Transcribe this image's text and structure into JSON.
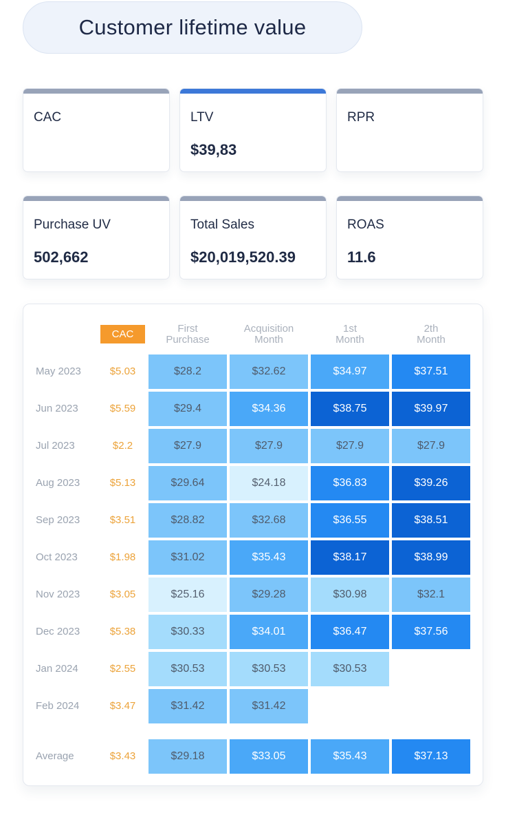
{
  "title": "Customer lifetime value",
  "kpis": [
    {
      "label": "CAC",
      "value": "",
      "active": false
    },
    {
      "label": "LTV",
      "value": "$39,83",
      "active": true
    },
    {
      "label": "RPR",
      "value": "",
      "active": false
    },
    {
      "label": "Purchase UV",
      "value": "502,662",
      "active": false
    },
    {
      "label": "Total Sales",
      "value": "$20,019,520.39",
      "active": false
    },
    {
      "label": "ROAS",
      "value": "11.6",
      "active": false
    }
  ],
  "table": {
    "cac_header": "CAC",
    "columns": [
      "First Purchase",
      "Acquisition Month",
      "1st Month",
      "2th Month"
    ],
    "rows": [
      {
        "label": "May 2023",
        "cac": "$5.03",
        "cells": [
          "$28.2",
          "$32.62",
          "$34.97",
          "$37.51"
        ]
      },
      {
        "label": "Jun 2023",
        "cac": "$5.59",
        "cells": [
          "$29.4",
          "$34.36",
          "$38.75",
          "$39.97"
        ]
      },
      {
        "label": "Jul 2023",
        "cac": "$2.2",
        "cells": [
          "$27.9",
          "$27.9",
          "$27.9",
          "$27.9"
        ]
      },
      {
        "label": "Aug 2023",
        "cac": "$5.13",
        "cells": [
          "$29.64",
          "$24.18",
          "$36.83",
          "$39.26"
        ]
      },
      {
        "label": "Sep 2023",
        "cac": "$3.51",
        "cells": [
          "$28.82",
          "$32.68",
          "$36.55",
          "$38.51"
        ]
      },
      {
        "label": "Oct 2023",
        "cac": "$1.98",
        "cells": [
          "$31.02",
          "$35.43",
          "$38.17",
          "$38.99"
        ]
      },
      {
        "label": "Nov 2023",
        "cac": "$3.05",
        "cells": [
          "$25.16",
          "$29.28",
          "$30.98",
          "$32.1"
        ]
      },
      {
        "label": "Dec 2023",
        "cac": "$5.38",
        "cells": [
          "$30.33",
          "$34.01",
          "$36.47",
          "$37.56"
        ]
      },
      {
        "label": "Jan 2024",
        "cac": "$2.55",
        "cells": [
          "$30.53",
          "$30.53",
          "$30.53"
        ]
      },
      {
        "label": "Feb 2024",
        "cac": "$3.47",
        "cells": [
          "$31.42",
          "$31.42"
        ]
      }
    ],
    "average": {
      "label": "Average",
      "cac": "$3.43",
      "cells": [
        "$29.18",
        "$33.05",
        "$35.43",
        "$37.13"
      ]
    }
  },
  "colors": {
    "shade_1": "#d8f1fe",
    "shade_2": "#a4dcfc",
    "shade_3": "#7cc5fa",
    "shade_4": "#4aa8f8",
    "shade_5": "#2489f2",
    "shade_6": "#0c63d4",
    "cac_accent": "#f59a2c"
  }
}
